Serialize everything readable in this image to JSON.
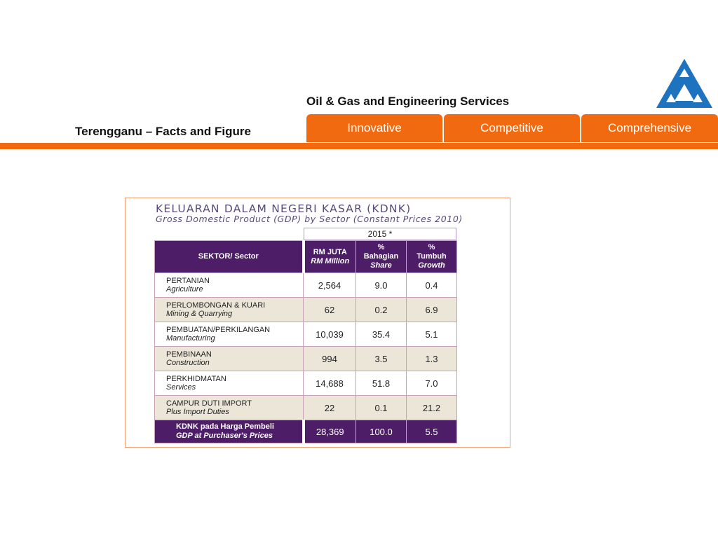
{
  "header": {
    "title": "Oil & Gas and Engineering Services",
    "page_title": "Terengganu – Facts and Figure",
    "tabs": [
      {
        "label": "Innovative"
      },
      {
        "label": "Competitive"
      },
      {
        "label": "Comprehensive"
      }
    ],
    "accent_color": "#f26a10",
    "logo_color": "#1e73be"
  },
  "table": {
    "title": "KELUARAN DALAM NEGERI KASAR (KDNK)",
    "subtitle": "Gross Domestic Product (GDP) by Sector (Constant Prices 2010)",
    "year": "2015 *",
    "columns": {
      "sector": "SEKTOR/ Sector",
      "rm_ms": "RM JUTA",
      "rm_en": "RM Million",
      "share_sym": "%",
      "share_ms": "Bahagian",
      "share_en": "Share",
      "growth_sym": "%",
      "growth_ms": "Tumbuh",
      "growth_en": "Growth"
    },
    "rows": [
      {
        "ms": "PERTANIAN",
        "en": "Agriculture",
        "rm": "2,564",
        "share": "9.0",
        "growth": "0.4"
      },
      {
        "ms": "PERLOMBONGAN & KUARI",
        "en": "Mining & Quarrying",
        "rm": "62",
        "share": "0.2",
        "growth": "6.9"
      },
      {
        "ms": "PEMBUATAN/PERKILANGAN",
        "en": "Manufacturing",
        "rm": "10,039",
        "share": "35.4",
        "growth": "5.1"
      },
      {
        "ms": "PEMBINAAN",
        "en": "Construction",
        "rm": "994",
        "share": "3.5",
        "growth": "1.3"
      },
      {
        "ms": "PERKHIDMATAN",
        "en": "Services",
        "rm": "14,688",
        "share": "51.8",
        "growth": "7.0"
      },
      {
        "ms": "CAMPUR DUTI IMPORT",
        "en": "Plus Import Duties",
        "rm": "22",
        "share": "0.1",
        "growth": "21.2"
      }
    ],
    "total": {
      "ms": "KDNK pada Harga Pembeli",
      "en": "GDP at Purchaser's Prices",
      "rm": "28,369",
      "share": "100.0",
      "growth": "5.5"
    }
  }
}
